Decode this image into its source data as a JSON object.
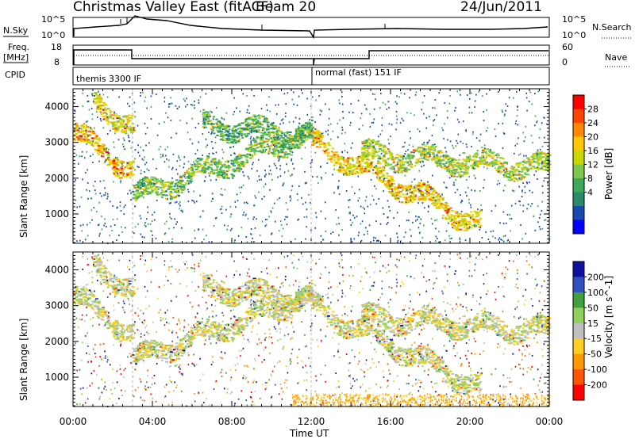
{
  "header": {
    "station": "Christmas Valley East (fitACF)",
    "beam": "Beam 20",
    "date": "24/Jun/2011"
  },
  "strips": {
    "nsky_label": "N.Sky",
    "nsky_ticks": [
      "10^5",
      "10^0"
    ],
    "nsearch_label": "N.Search",
    "nsearch_ticks": [
      "10^5",
      "10^0"
    ],
    "freq_label_1": "Freq.",
    "freq_label_2": "[MHz]",
    "freq_ticks": [
      "18",
      "8"
    ],
    "nave_label": "Nave",
    "nave_ticks": [
      "60",
      "0"
    ],
    "cpid_label": "CPID",
    "cpid_modes": [
      "themis 3300 IF",
      "normal (fast) 151 IF"
    ]
  },
  "chart_data": [
    {
      "type": "heatmap",
      "name": "power-panel",
      "ylabel": "Slant Range [km]",
      "xlabel": "Time UT",
      "y_ticks": [
        1000,
        2000,
        3000,
        4000
      ],
      "ylim": [
        180,
        4500
      ],
      "x_ticks": [
        "00:00",
        "04:00",
        "08:00",
        "12:00",
        "16:00",
        "20:00",
        "00:00"
      ],
      "x_hours": [
        0,
        4,
        8,
        12,
        16,
        20,
        24
      ],
      "colorbar": {
        "label": "Power [dB]",
        "ticks": [
          "28",
          "24",
          "20",
          "16",
          "12",
          "8",
          "4"
        ],
        "colors": [
          "#ff0000",
          "#ff4400",
          "#ff8800",
          "#ffc800",
          "#c8d800",
          "#7ec850",
          "#3caa5a",
          "#2a8a6a",
          "#1a4ab0",
          "#0000ff"
        ]
      },
      "echo_bands": [
        {
          "start_h": 0.0,
          "end_h": 3.0,
          "start_km": 3300,
          "end_km": 2200,
          "intensity": 0.9
        },
        {
          "start_h": 1.0,
          "end_h": 3.0,
          "start_km": 4100,
          "end_km": 3500,
          "intensity": 0.8
        },
        {
          "start_h": 3.0,
          "end_h": 12.0,
          "start_km": 1500,
          "end_km": 3300,
          "intensity": 0.55
        },
        {
          "start_h": 12.0,
          "end_h": 20.5,
          "start_km": 3000,
          "end_km": 700,
          "intensity": 0.85
        },
        {
          "start_h": 14.5,
          "end_h": 24.0,
          "start_km": 2700,
          "end_km": 2300,
          "intensity": 0.65
        },
        {
          "start_h": 6.5,
          "end_h": 12.0,
          "start_km": 3500,
          "end_km": 3200,
          "intensity": 0.45
        }
      ]
    },
    {
      "type": "heatmap",
      "name": "velocity-panel",
      "ylabel": "Slant Range [km]",
      "xlabel": "Time UT",
      "y_ticks": [
        1000,
        2000,
        3000,
        4000
      ],
      "ylim": [
        180,
        4500
      ],
      "x_ticks": [
        "00:00",
        "04:00",
        "08:00",
        "12:00",
        "16:00",
        "20:00",
        "00:00"
      ],
      "x_hours": [
        0,
        4,
        8,
        12,
        16,
        20,
        24
      ],
      "colorbar": {
        "label": "Velocity [m s^-1]",
        "ticks": [
          "200",
          "100",
          "50",
          "15",
          "-15",
          "-50",
          "-100",
          "-200"
        ],
        "colors": [
          "#1010a0",
          "#3050c0",
          "#40a040",
          "#90d060",
          "#c0c0c0",
          "#ffd020",
          "#ff9900",
          "#ff5500",
          "#ff0000"
        ]
      }
    }
  ]
}
